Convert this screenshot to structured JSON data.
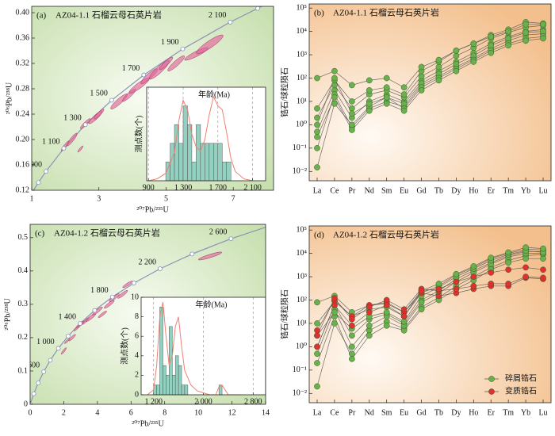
{
  "chart_data": [
    {
      "type": "concordia",
      "label": "(a)",
      "title": "AZ04-1.1 石榴云母石英片岩",
      "xlabel": "²⁰⁷Pb/²³⁵U",
      "ylabel": "²⁰⁶Pb/²³⁸U",
      "xlim": [
        1,
        8.2
      ],
      "ylim": [
        0.12,
        0.41
      ],
      "xticks": [
        1,
        3,
        5,
        7
      ],
      "yticks": [
        0.12,
        0.16,
        {
          "value": 0.2,
          "label": "0.20"
        },
        0.24,
        0.28,
        0.32,
        0.36,
        {
          "value": 0.4,
          "label": "0.40"
        }
      ],
      "concordia": {
        "color": "#8a94b8",
        "x": [
          0.992,
          1.2,
          1.426,
          1.955,
          2.598,
          3.381,
          4.335,
          5.496,
          6.911,
          7.729,
          8.633
        ],
        "y": [
          0.1149,
          0.1322,
          0.1498,
          0.1861,
          0.2234,
          0.262,
          0.3018,
          0.3428,
          0.3851,
          0.4067,
          0.4288
        ],
        "labels": [
          null,
          null,
          "900",
          "1 100",
          "1 300",
          "1 500",
          "1 700",
          "1 900",
          "2 100",
          null,
          null
        ]
      },
      "ellipse_color": "#e0669a",
      "error_correlation": 0.9,
      "ellipses": {
        "x": [
          2.0,
          2.2,
          2.45,
          2.6,
          2.9,
          3.0,
          3.6,
          3.9,
          4.2,
          4.5,
          4.8,
          5.0,
          5.3,
          5.9,
          6.3
        ],
        "y": [
          0.19,
          0.2,
          0.185,
          0.225,
          0.235,
          0.24,
          0.26,
          0.27,
          0.285,
          0.3,
          0.31,
          0.32,
          0.32,
          0.335,
          0.35
        ],
        "x_err": [
          0.12,
          0.15,
          0.08,
          0.15,
          0.2,
          0.15,
          0.25,
          0.2,
          0.3,
          0.25,
          0.3,
          0.2,
          0.25,
          0.35,
          0.4
        ],
        "y_err": [
          0.008,
          0.01,
          0.005,
          0.008,
          0.01,
          0.008,
          0.012,
          0.01,
          0.012,
          0.012,
          0.015,
          0.01,
          0.012,
          0.01,
          0.015
        ]
      },
      "inset": {
        "type": "histogram",
        "title": "年龄(Ma)",
        "ylabel": "测点数(个)",
        "color": "#94d0c0",
        "xlim": [
          880,
          2250
        ],
        "ylim": [
          0,
          5
        ],
        "xticks": [
          900,
          {
            "value": 1300,
            "label": "1 300"
          },
          {
            "value": 1700,
            "label": "1 700"
          },
          {
            "value": 2100,
            "label": "2 100"
          }
        ],
        "bins": [
          1100,
          1150,
          1200,
          1250,
          1300,
          1350,
          1400,
          1450,
          1500,
          1550,
          1600,
          1650,
          1700,
          1750,
          1800,
          1850
        ],
        "counts": [
          1,
          2,
          3,
          2,
          4,
          3,
          1,
          3,
          2,
          2,
          2,
          2,
          2,
          1,
          1
        ],
        "density": {
          "color": "#f08070",
          "x": [
            900,
            1000,
            1100,
            1200,
            1250,
            1300,
            1350,
            1400,
            1450,
            1500,
            1550,
            1600,
            1650,
            1700,
            1750,
            1800,
            1850,
            1900,
            2000,
            2100
          ],
          "y": [
            0,
            0.1,
            0.4,
            1.5,
            3.2,
            4.3,
            3.8,
            2.5,
            1.8,
            1.6,
            2.2,
            3.5,
            4.5,
            4.0,
            3.8,
            2.6,
            1.2,
            0.5,
            0.1,
            0
          ]
        }
      }
    },
    {
      "type": "line",
      "label": "(b)",
      "title": "AZ04-1.1 石榴云母石英片岩",
      "ylabel": "锆石/球粒陨石",
      "log_y": true,
      "ylim": [
        0.004,
        150000
      ],
      "yticks": [
        {
          "value": 0.01,
          "label": "10⁻²"
        },
        {
          "value": 0.1,
          "label": "10⁻¹"
        },
        {
          "value": 1,
          "label": "10⁰"
        },
        {
          "value": 10,
          "label": "10¹"
        },
        {
          "value": 100,
          "label": "10²"
        },
        {
          "value": 1000,
          "label": "10³"
        },
        {
          "value": 10000,
          "label": "10⁴"
        },
        {
          "value": 100000,
          "label": "10⁵"
        }
      ],
      "categories": [
        "La",
        "Ce",
        "Pr",
        "Nd",
        "Sm",
        "Eu",
        "Gd",
        "Tb",
        "Dy",
        "Ho",
        "Er",
        "Tm",
        "Yb",
        "Lu"
      ],
      "line_color": "#555555",
      "groups": [
        {
          "color": "#6ab04c",
          "series": [
            [
              0.5,
              30,
              2,
              10,
              20,
              10,
              80,
              200,
              500,
              1200,
              3000,
              6000,
              10000,
              12000
            ],
            [
              2,
              50,
              5,
              20,
              30,
              15,
              120,
              300,
              900,
              2000,
              5000,
              9000,
              15000,
              18000
            ],
            [
              0.1,
              20,
              0.8,
              5,
              10,
              6,
              50,
              120,
              300,
              700,
              1800,
              4000,
              7000,
              8000
            ],
            [
              5,
              80,
              10,
              30,
              40,
              20,
              200,
              500,
              1500,
              3000,
              7000,
              12000,
              25000,
              22000
            ],
            [
              0.015,
              8,
              1,
              6,
              15,
              8,
              60,
              150,
              400,
              900,
              2500,
              5000,
              9000,
              10000
            ],
            [
              1,
              100,
              3,
              8,
              15,
              5,
              40,
              100,
              250,
              600,
              1500,
              3000,
              5000,
              6000
            ],
            [
              100,
              200,
              50,
              80,
              100,
              40,
              300,
              600,
              1500,
              3000,
              6000,
              10000,
              20000,
              20000
            ],
            [
              0.3,
              15,
              0.6,
              4,
              8,
              4,
              30,
              80,
              200,
              500,
              1200,
              2500,
              4000,
              5000
            ]
          ]
        }
      ]
    },
    {
      "type": "concordia",
      "label": "(c)",
      "title": "AZ04-1.2 石榴云母石英片岩",
      "xlabel": "²⁰⁷Pb/²³⁵U",
      "ylabel": "²⁰⁶Pb/²³⁸U",
      "xlim": [
        0,
        14
      ],
      "ylim": [
        0,
        0.54
      ],
      "xticks": [
        0,
        2,
        4,
        6,
        8,
        10,
        12,
        14
      ],
      "yticks": [
        0,
        0.1,
        0.2,
        0.3,
        0.4,
        0.5
      ],
      "concordia": {
        "color": "#8a94b8",
        "x": [
          0,
          0.2177,
          0.4828,
          0.8057,
          1.1987,
          1.6774,
          2.2603,
          2.9701,
          3.8343,
          4.8869,
          6.1683,
          7.729,
          9.63,
          11.944,
          14.76
        ],
        "y": [
          0,
          0.03151,
          0.064,
          0.09754,
          0.1322,
          0.1678,
          0.2046,
          0.2426,
          0.2817,
          0.3221,
          0.3638,
          0.4067,
          0.4511,
          0.4968,
          0.544
        ],
        "labels": [
          null,
          null,
          null,
          "600",
          null,
          "1 000",
          null,
          "1 400",
          null,
          "1 800",
          null,
          "2 200",
          null,
          "2 600",
          null
        ]
      },
      "ellipse_color": "#e0669a",
      "error_correlation": 0.9,
      "ellipses": {
        "x": [
          2.0,
          2.2,
          2.5,
          2.8,
          3.0,
          3.3,
          3.6,
          4.0,
          4.3,
          4.7,
          5.0,
          5.5,
          5.8,
          10.7
        ],
        "y": [
          0.16,
          0.19,
          0.2,
          0.23,
          0.24,
          0.25,
          0.26,
          0.28,
          0.27,
          0.3,
          0.32,
          0.33,
          0.36,
          0.445
        ],
        "x_err": [
          0.15,
          0.15,
          0.2,
          0.2,
          0.25,
          0.2,
          0.3,
          0.3,
          0.25,
          0.3,
          0.3,
          0.3,
          0.3,
          0.7
        ],
        "y_err": [
          0.01,
          0.008,
          0.01,
          0.01,
          0.01,
          0.01,
          0.012,
          0.012,
          0.01,
          0.012,
          0.012,
          0.012,
          0.01,
          0.012
        ]
      },
      "inset": {
        "type": "histogram",
        "title": "年龄(Ma)",
        "ylabel": "测点数(个)",
        "color": "#94d0c0",
        "xlim": [
          1000,
          3000
        ],
        "ylim": [
          0,
          10
        ],
        "yticks": [
          0,
          2,
          4,
          6,
          8,
          10
        ],
        "xticks": [
          {
            "value": 1200,
            "label": "1 200"
          },
          {
            "value": 2000,
            "label": "2 000"
          },
          {
            "value": 2800,
            "label": "2 800"
          }
        ],
        "bins": [
          1200,
          1250,
          1300,
          1350,
          1400,
          1450,
          1500,
          1550,
          1600,
          1650,
          1700,
          1750,
          1800,
          1850,
          1900,
          1950,
          2000,
          2050,
          2100,
          2150,
          2200,
          2250,
          2300,
          2350
        ],
        "counts": [
          1,
          1,
          9,
          3,
          2,
          7,
          2,
          4,
          3,
          1,
          1,
          0,
          0,
          0,
          0,
          0,
          0,
          0,
          0,
          0,
          0,
          1,
          0
        ],
        "density": {
          "color": "#f08070",
          "x": [
            1100,
            1200,
            1250,
            1300,
            1350,
            1400,
            1450,
            1500,
            1550,
            1600,
            1650,
            1700,
            1800,
            1900,
            2000,
            2100,
            2200,
            2250,
            2300,
            2400,
            2600
          ],
          "y": [
            0,
            0.5,
            3,
            8,
            9.5,
            6,
            3,
            4,
            7,
            8,
            5,
            2.5,
            1,
            0.4,
            0.2,
            0,
            0,
            0.8,
            1,
            0,
            0
          ]
        }
      }
    },
    {
      "type": "line",
      "label": "(d)",
      "title": "AZ04-1.2 石榴云母石英片岩",
      "ylabel": "锆石/球粒陨石",
      "log_y": true,
      "ylim": [
        0.004,
        150000
      ],
      "legend": "lower right",
      "yticks": [
        {
          "value": 0.01,
          "label": "10⁻²"
        },
        {
          "value": 0.1,
          "label": "10⁻¹"
        },
        {
          "value": 1,
          "label": "10⁰"
        },
        {
          "value": 10,
          "label": "10¹"
        },
        {
          "value": 100,
          "label": "10²"
        },
        {
          "value": 1000,
          "label": "10³"
        },
        {
          "value": 10000,
          "label": "10⁴"
        },
        {
          "value": 100000,
          "label": "10⁵"
        }
      ],
      "categories": [
        "La",
        "Ce",
        "Pr",
        "Nd",
        "Sm",
        "Eu",
        "Gd",
        "Tb",
        "Dy",
        "Ho",
        "Er",
        "Tm",
        "Yb",
        "Lu"
      ],
      "line_color": "#555555",
      "groups": [
        {
          "name": "碎屑锆石",
          "color": "#6ab04c",
          "series": [
            [
              0.02,
              10,
              0.5,
              5,
              12,
              6,
              50,
              130,
              400,
              1000,
              2500,
              5000,
              8000,
              9000
            ],
            [
              1,
              60,
              3,
              15,
              25,
              10,
              100,
              250,
              800,
              1800,
              4000,
              8000,
              12000,
              12000
            ],
            [
              0.2,
              20,
              0.3,
              3,
              8,
              5,
              40,
              100,
              300,
              700,
              2000,
              4000,
              6000,
              6000
            ],
            [
              10,
              90,
              20,
              40,
              50,
              20,
              200,
              400,
              1200,
              2500,
              6000,
              10000,
              15000,
              14000
            ],
            [
              0.5,
              40,
              1,
              8,
              20,
              8,
              80,
              200,
              600,
              1500,
              3500,
              7000,
              10000,
              10000
            ],
            [
              3,
              30,
              6,
              20,
              30,
              12,
              150,
              350,
              1000,
              2200,
              5000,
              9000,
              13000,
              11000
            ],
            [
              80,
              150,
              30,
              60,
              70,
              30,
              250,
              500,
              1300,
              2800,
              6500,
              11000,
              18000,
              16000
            ]
          ]
        },
        {
          "name": "变质锆石",
          "color": "#e03030",
          "series": [
            [
              5,
              100,
              20,
              60,
              80,
              30,
              200,
              150,
              200,
              300,
              400,
              400,
              900,
              800
            ],
            [
              3,
              120,
              15,
              50,
              100,
              40,
              300,
              250,
              300,
              400,
              500,
              500,
              1000,
              900
            ],
            [
              1,
              60,
              8,
              30,
              60,
              20,
              250,
              300,
              600,
              1000,
              1500,
              2000,
              2500,
              2000
            ]
          ]
        }
      ]
    }
  ]
}
